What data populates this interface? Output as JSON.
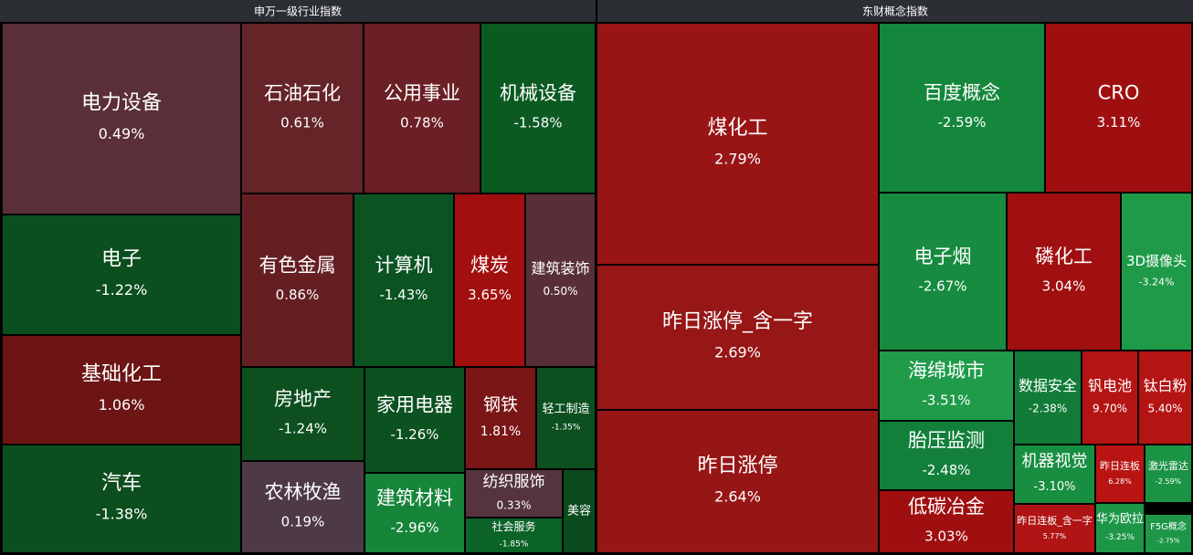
{
  "chart_data": [
    {
      "type": "treemap",
      "title": "申万一级行业指数",
      "categories": [
        "电力设备",
        "电子",
        "基础化工",
        "汽车",
        "石油石化",
        "公用事业",
        "机械设备",
        "有色金属",
        "计算机",
        "煤炭",
        "建筑装饰",
        "房地产",
        "农林牧渔",
        "家用电器",
        "建筑材料",
        "钢铁",
        "轻工制造",
        "纺织服饰",
        "社会服务",
        "美容"
      ],
      "values": [
        0.49,
        -1.22,
        1.06,
        -1.38,
        0.61,
        0.78,
        -1.58,
        0.86,
        -1.43,
        3.65,
        0.5,
        -1.24,
        0.19,
        -1.26,
        -2.96,
        1.81,
        -1.35,
        0.33,
        -1.85,
        null
      ],
      "value_labels": [
        "0.49%",
        "-1.22%",
        "1.06%",
        "-1.38%",
        "0.61%",
        "0.78%",
        "-1.58%",
        "0.86%",
        "-1.43%",
        "3.65%",
        "0.50%",
        "-1.24%",
        "0.19%",
        "-1.26%",
        "-2.96%",
        "1.81%",
        "-1.35%",
        "0.33%",
        "-1.85%",
        null
      ],
      "colors": [
        "#5a2f37",
        "#0c4f1f",
        "#6d1515",
        "#0d4e1e",
        "#652428",
        "#6a2024",
        "#0b5a22",
        "#651f23",
        "#0b5422",
        "#a20f0f",
        "#592f37",
        "#0d4f1f",
        "#4e3a47",
        "#0c5120",
        "#16853a",
        "#7a1616",
        "#0c5020",
        "#55343d",
        "#0b6327",
        "#0a4a1d"
      ]
    },
    {
      "type": "treemap",
      "title": "东财概念指数",
      "categories": [
        "煤化工",
        "昨日涨停_含一字",
        "昨日涨停",
        "百度概念",
        "CRO",
        "电子烟",
        "磷化工",
        "3D摄像头",
        "海绵城市",
        "胎压监测",
        "低碳冶金",
        "数据安全",
        "钒电池",
        "钛白粉",
        "机器视觉",
        "昨日连板_含一字",
        "昨日连板",
        "激光雷达",
        "华为欧拉",
        "F5G概念"
      ],
      "values": [
        2.79,
        2.69,
        2.64,
        -2.59,
        3.11,
        -2.67,
        3.04,
        -3.24,
        -3.51,
        -2.48,
        3.03,
        -2.38,
        9.7,
        5.4,
        -3.1,
        5.77,
        6.28,
        -2.59,
        -3.25,
        -2.75
      ],
      "value_labels": [
        "2.79%",
        "2.69%",
        "2.64%",
        "-2.59%",
        "3.11%",
        "-2.67%",
        "3.04%",
        "-3.24%",
        "-3.51%",
        "-2.48%",
        "3.03%",
        "-2.38%",
        "9.70%",
        "5.40%",
        "-3.10%",
        "5.77%",
        "6.28%",
        "-2.59%",
        "-3.25%",
        "-2.75%"
      ],
      "colors": [
        "#991515",
        "#971616",
        "#961616",
        "#15873c",
        "#a00f0f",
        "#178b3f",
        "#a01010",
        "#1f9a48",
        "#1f9b4a",
        "#12803a",
        "#a00f0f",
        "#117c38",
        "#b51414",
        "#b51414",
        "#188e40",
        "#b01414",
        "#b81414",
        "#1b9344",
        "#1d9747",
        "#1d9747"
      ]
    }
  ]
}
